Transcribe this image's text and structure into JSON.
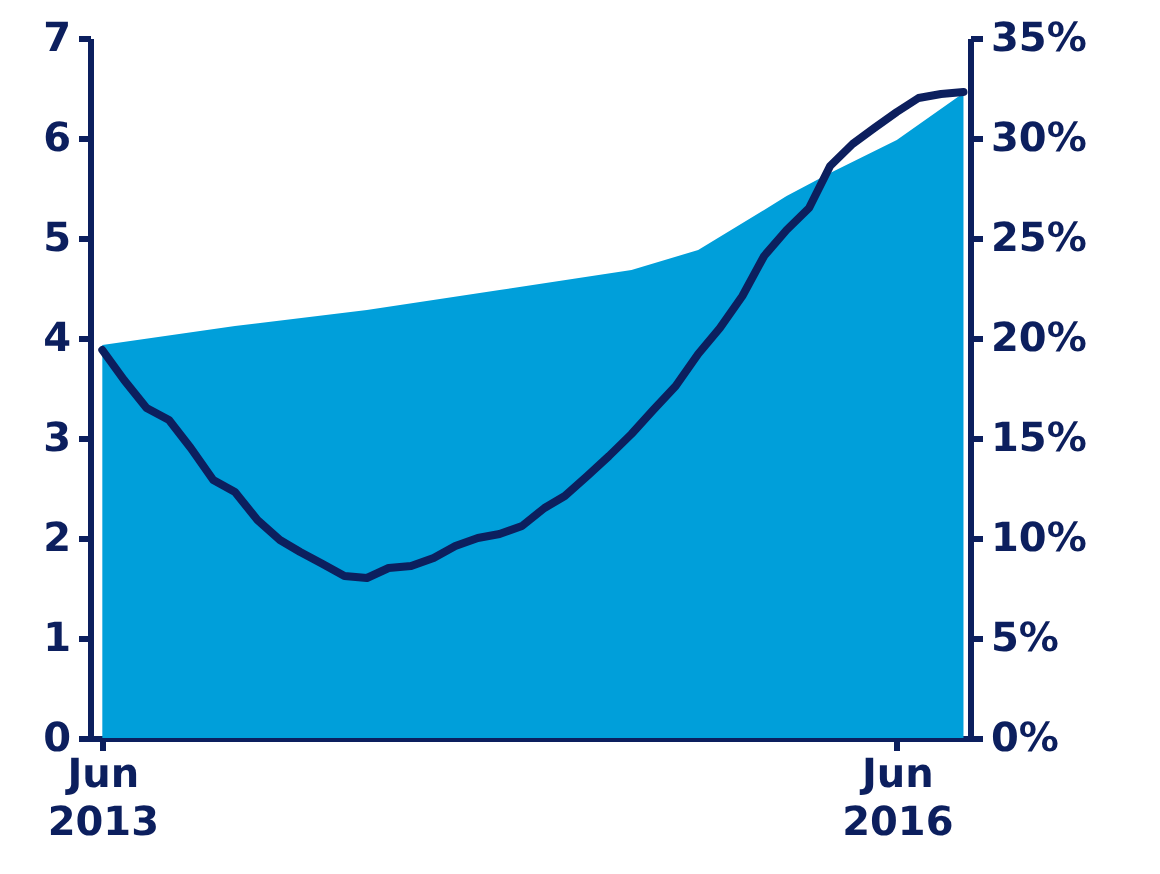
{
  "chart_data": {
    "type": "area",
    "x": [
      "2013-06",
      "2013-07",
      "2013-08",
      "2013-09",
      "2013-10",
      "2013-11",
      "2013-12",
      "2014-01",
      "2014-02",
      "2014-03",
      "2014-04",
      "2014-05",
      "2014-06",
      "2014-07",
      "2014-08",
      "2014-09",
      "2014-10",
      "2014-11",
      "2014-12",
      "2015-01",
      "2015-02",
      "2015-03",
      "2015-04",
      "2015-05",
      "2015-06",
      "2015-07",
      "2015-08",
      "2015-09",
      "2015-10",
      "2015-11",
      "2015-12",
      "2016-01",
      "2016-02",
      "2016-03",
      "2016-04",
      "2016-05",
      "2016-06",
      "2016-07",
      "2016-08",
      "2016-09"
    ],
    "series": [
      {
        "color": "#009fda",
        "values": [
          3.93,
          null,
          null,
          null,
          null,
          null,
          4.12,
          null,
          null,
          null,
          null,
          null,
          4.28,
          null,
          null,
          null,
          null,
          null,
          4.48,
          null,
          null,
          null,
          null,
          null,
          4.68,
          null,
          null,
          4.88,
          null,
          null,
          5.28,
          5.42,
          null,
          5.65,
          null,
          null,
          5.98,
          null,
          null,
          6.45
        ]
      },
      {
        "type": "line",
        "axis": "y2",
        "color": "#0c1f5e",
        "values": [
          19.4,
          17.9,
          16.5,
          15.9,
          14.5,
          12.9,
          12.3,
          10.9,
          9.9,
          9.3,
          8.7,
          8.1,
          8.0,
          8.5,
          8.6,
          9.0,
          9.6,
          10.0,
          10.2,
          10.6,
          11.5,
          12.1,
          13.1,
          14.1,
          15.2,
          16.4,
          17.6,
          19.2,
          20.5,
          22.1,
          24.1,
          25.4,
          26.5,
          28.6,
          29.7,
          30.5,
          31.3,
          32.0,
          32.2,
          32.3
        ]
      }
    ],
    "xlim": [
      "2013-05-15",
      "2016-09-10"
    ],
    "xticks": [
      {
        "value": "2013-06",
        "label": "Jun 2013"
      },
      {
        "value": "2016-06",
        "label": "Jun 2016"
      }
    ],
    "ylim": [
      0,
      7
    ],
    "yticks": [
      0,
      1,
      2,
      3,
      4,
      5,
      6,
      7
    ],
    "y2lim": [
      0,
      35
    ],
    "y2ticks": [
      {
        "value": 0,
        "label": "0%"
      },
      {
        "value": 5,
        "label": "5%"
      },
      {
        "value": 10,
        "label": "10%"
      },
      {
        "value": 15,
        "label": "15%"
      },
      {
        "value": 20,
        "label": "20%"
      },
      {
        "value": 25,
        "label": "25%"
      },
      {
        "value": 30,
        "label": "30%"
      },
      {
        "value": 35,
        "label": "35%"
      }
    ],
    "line_style": "solid",
    "marker": "none"
  }
}
